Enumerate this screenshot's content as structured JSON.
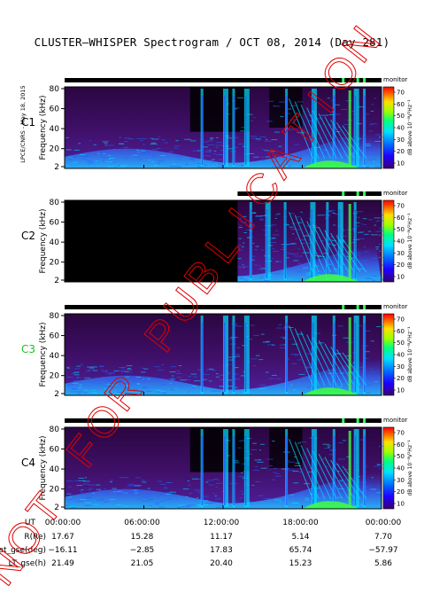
{
  "title": "CLUSTER–WHISPER Spectrogram / OCT 08, 2014 (Day 281)",
  "side_note": "LPCE/CNRS - May 18, 2015",
  "stamp": "NOT FOR PUBLICATION",
  "colors": {
    "background": "#000000",
    "panel_purple": "#3a0a55",
    "spectral_blue": "#2060ff",
    "spectral_cyan": "#00e0ff",
    "spectral_green": "#40ff40",
    "stamp_red": "#e00000",
    "c3_label": "#20c020"
  },
  "chart_data": [
    {
      "type": "heatmap",
      "spacecraft": "C1",
      "label_color": "#000000",
      "ylabel": "Frequency (kHz)",
      "yticks": [
        2,
        20,
        40,
        60,
        80
      ],
      "ylim": [
        2,
        80
      ],
      "colorbar": {
        "label": "dB above 10⁻⁸V²Hz⁻¹",
        "ticks": [
          10,
          20,
          30,
          40,
          50,
          60,
          70
        ],
        "header": "monitor"
      },
      "coverage_start_h": 0.0
    },
    {
      "type": "heatmap",
      "spacecraft": "C2",
      "label_color": "#000000",
      "ylabel": "Frequency (kHz)",
      "yticks": [
        2,
        20,
        40,
        60,
        80
      ],
      "ylim": [
        2,
        80
      ],
      "colorbar": {
        "label": "dB above 10⁻⁸V²Hz⁻¹",
        "ticks": [
          10,
          20,
          30,
          40,
          50,
          60,
          70
        ],
        "header": "monitor"
      },
      "coverage_start_h": 13.1
    },
    {
      "type": "heatmap",
      "spacecraft": "C3",
      "label_color": "#20c020",
      "ylabel": "Frequency (kHz)",
      "yticks": [
        2,
        20,
        40,
        60,
        80
      ],
      "ylim": [
        2,
        80
      ],
      "colorbar": {
        "label": "dB above 10⁻⁸V²Hz⁻¹",
        "ticks": [
          10,
          20,
          30,
          40,
          50,
          60,
          70
        ],
        "header": "monitor"
      },
      "coverage_start_h": 0.0
    },
    {
      "type": "heatmap",
      "spacecraft": "C4",
      "label_color": "#000000",
      "ylabel": "Frequency (kHz)",
      "yticks": [
        2,
        20,
        40,
        60,
        80
      ],
      "ylim": [
        2,
        80
      ],
      "colorbar": {
        "label": "dB above 10⁻⁸V²Hz⁻¹",
        "ticks": [
          10,
          20,
          30,
          40,
          50,
          60,
          70
        ],
        "header": "monitor"
      },
      "coverage_start_h": 0.0
    }
  ],
  "ephemeris": {
    "row_labels": [
      "UT",
      "R(Re)",
      "Lat_gse(deg)",
      "LT_gse(h)"
    ],
    "columns": [
      {
        "UT": "00:00:00",
        "R(Re)": "17.67",
        "Lat_gse(deg)": "−16.11",
        "LT_gse(h)": "21.49"
      },
      {
        "UT": "06:00:00",
        "R(Re)": "15.28",
        "Lat_gse(deg)": "−2.85",
        "LT_gse(h)": "21.05"
      },
      {
        "UT": "12:00:00",
        "R(Re)": "11.17",
        "Lat_gse(deg)": "17.83",
        "LT_gse(h)": "20.40"
      },
      {
        "UT": "18:00:00",
        "R(Re)": "5.14",
        "Lat_gse(deg)": "65.74",
        "LT_gse(h)": "15.23"
      },
      {
        "UT": "00:00:00",
        "R(Re)": "7.70",
        "Lat_gse(deg)": "−57.97",
        "LT_gse(h)": "5.86"
      }
    ]
  }
}
